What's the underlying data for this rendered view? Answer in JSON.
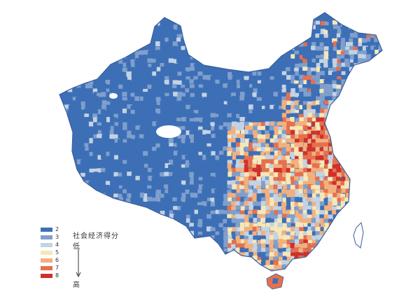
{
  "colors": {
    "background": "#ffffff",
    "border": "#3a5f9f",
    "island": "#ffffff"
  },
  "legend": {
    "title": "社会经济得分",
    "low_label": "低",
    "high_label": "高",
    "items": [
      {
        "value": "2",
        "color": "#3d6fb6"
      },
      {
        "value": "3",
        "color": "#7f9fcc"
      },
      {
        "value": "4",
        "color": "#c3d3e3"
      },
      {
        "value": "5",
        "color": "#f6e7b9"
      },
      {
        "value": "6",
        "color": "#f2b07f"
      },
      {
        "value": "7",
        "color": "#e6704d"
      },
      {
        "value": "8",
        "color": "#d1302a"
      }
    ]
  }
}
